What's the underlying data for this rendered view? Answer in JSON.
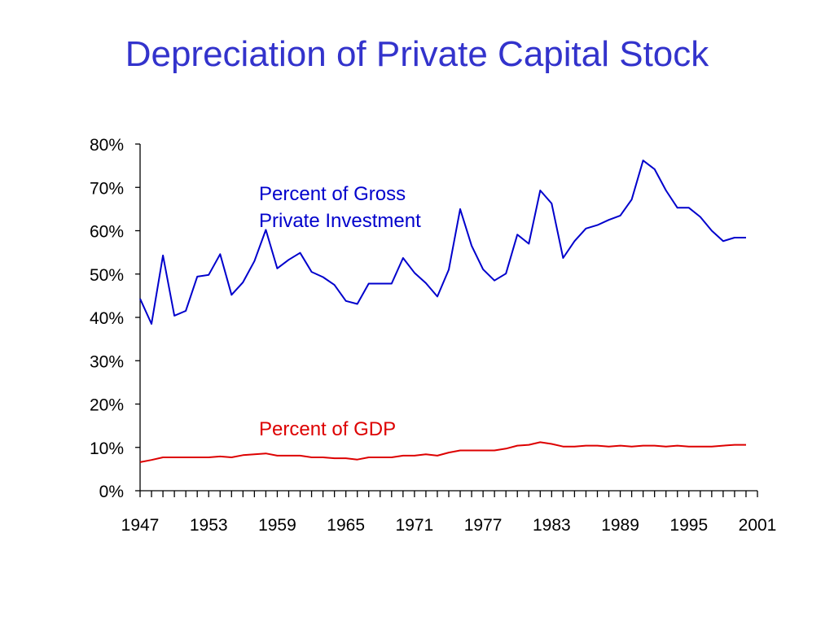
{
  "chart_data": {
    "type": "line",
    "title": "Depreciation of Private Capital Stock",
    "xlabel": "",
    "ylabel": "",
    "ylim": [
      0,
      80
    ],
    "xlim": [
      1947,
      2001
    ],
    "yticks": [
      "0%",
      "10%",
      "20%",
      "30%",
      "40%",
      "50%",
      "60%",
      "70%",
      "80%"
    ],
    "xtick_labels": [
      "1947",
      "1953",
      "1959",
      "1965",
      "1971",
      "1977",
      "1983",
      "1989",
      "1995",
      "2001"
    ],
    "grid": false,
    "legend": "none",
    "x": [
      1947,
      1948,
      1949,
      1950,
      1951,
      1952,
      1953,
      1954,
      1955,
      1956,
      1957,
      1958,
      1959,
      1960,
      1961,
      1962,
      1963,
      1964,
      1965,
      1966,
      1967,
      1968,
      1969,
      1970,
      1971,
      1972,
      1973,
      1974,
      1975,
      1976,
      1977,
      1978,
      1979,
      1980,
      1981,
      1982,
      1983,
      1984,
      1985,
      1986,
      1987,
      1988,
      1989,
      1990,
      1991,
      1992,
      1993,
      1994,
      1995,
      1996,
      1997,
      1998,
      1999,
      2000
    ],
    "series": [
      {
        "annotation": [
          "Percent of Gross",
          "Private Investment"
        ],
        "color": "#0000cc",
        "values": [
          44.3,
          38.5,
          54.3,
          40.4,
          41.5,
          49.4,
          49.8,
          54.6,
          45.2,
          48.1,
          53.0,
          60.2,
          51.3,
          53.3,
          54.9,
          50.5,
          49.3,
          47.5,
          43.8,
          43.1,
          47.8,
          47.8,
          47.8,
          53.7,
          50.3,
          47.9,
          44.8,
          51.0,
          65.0,
          56.5,
          51.1,
          48.5,
          50.1,
          59.1,
          57.0,
          69.3,
          66.3,
          53.7,
          57.6,
          60.5,
          61.3,
          62.5,
          63.5,
          67.2,
          76.2,
          74.2,
          69.3,
          65.3,
          65.3,
          63.2,
          60.0,
          57.6,
          58.4,
          58.4
        ]
      },
      {
        "annotation": [
          "Percent of GDP"
        ],
        "color": "#dd0000",
        "values": [
          6.6,
          7.1,
          7.7,
          7.7,
          7.7,
          7.7,
          7.7,
          7.9,
          7.7,
          8.2,
          8.4,
          8.6,
          8.1,
          8.1,
          8.1,
          7.7,
          7.7,
          7.5,
          7.5,
          7.2,
          7.7,
          7.7,
          7.7,
          8.1,
          8.1,
          8.4,
          8.1,
          8.8,
          9.3,
          9.3,
          9.3,
          9.3,
          9.7,
          10.4,
          10.6,
          11.2,
          10.8,
          10.2,
          10.2,
          10.4,
          10.4,
          10.2,
          10.4,
          10.2,
          10.4,
          10.4,
          10.2,
          10.4,
          10.2,
          10.2,
          10.2,
          10.4,
          10.6,
          10.6
        ]
      }
    ]
  }
}
